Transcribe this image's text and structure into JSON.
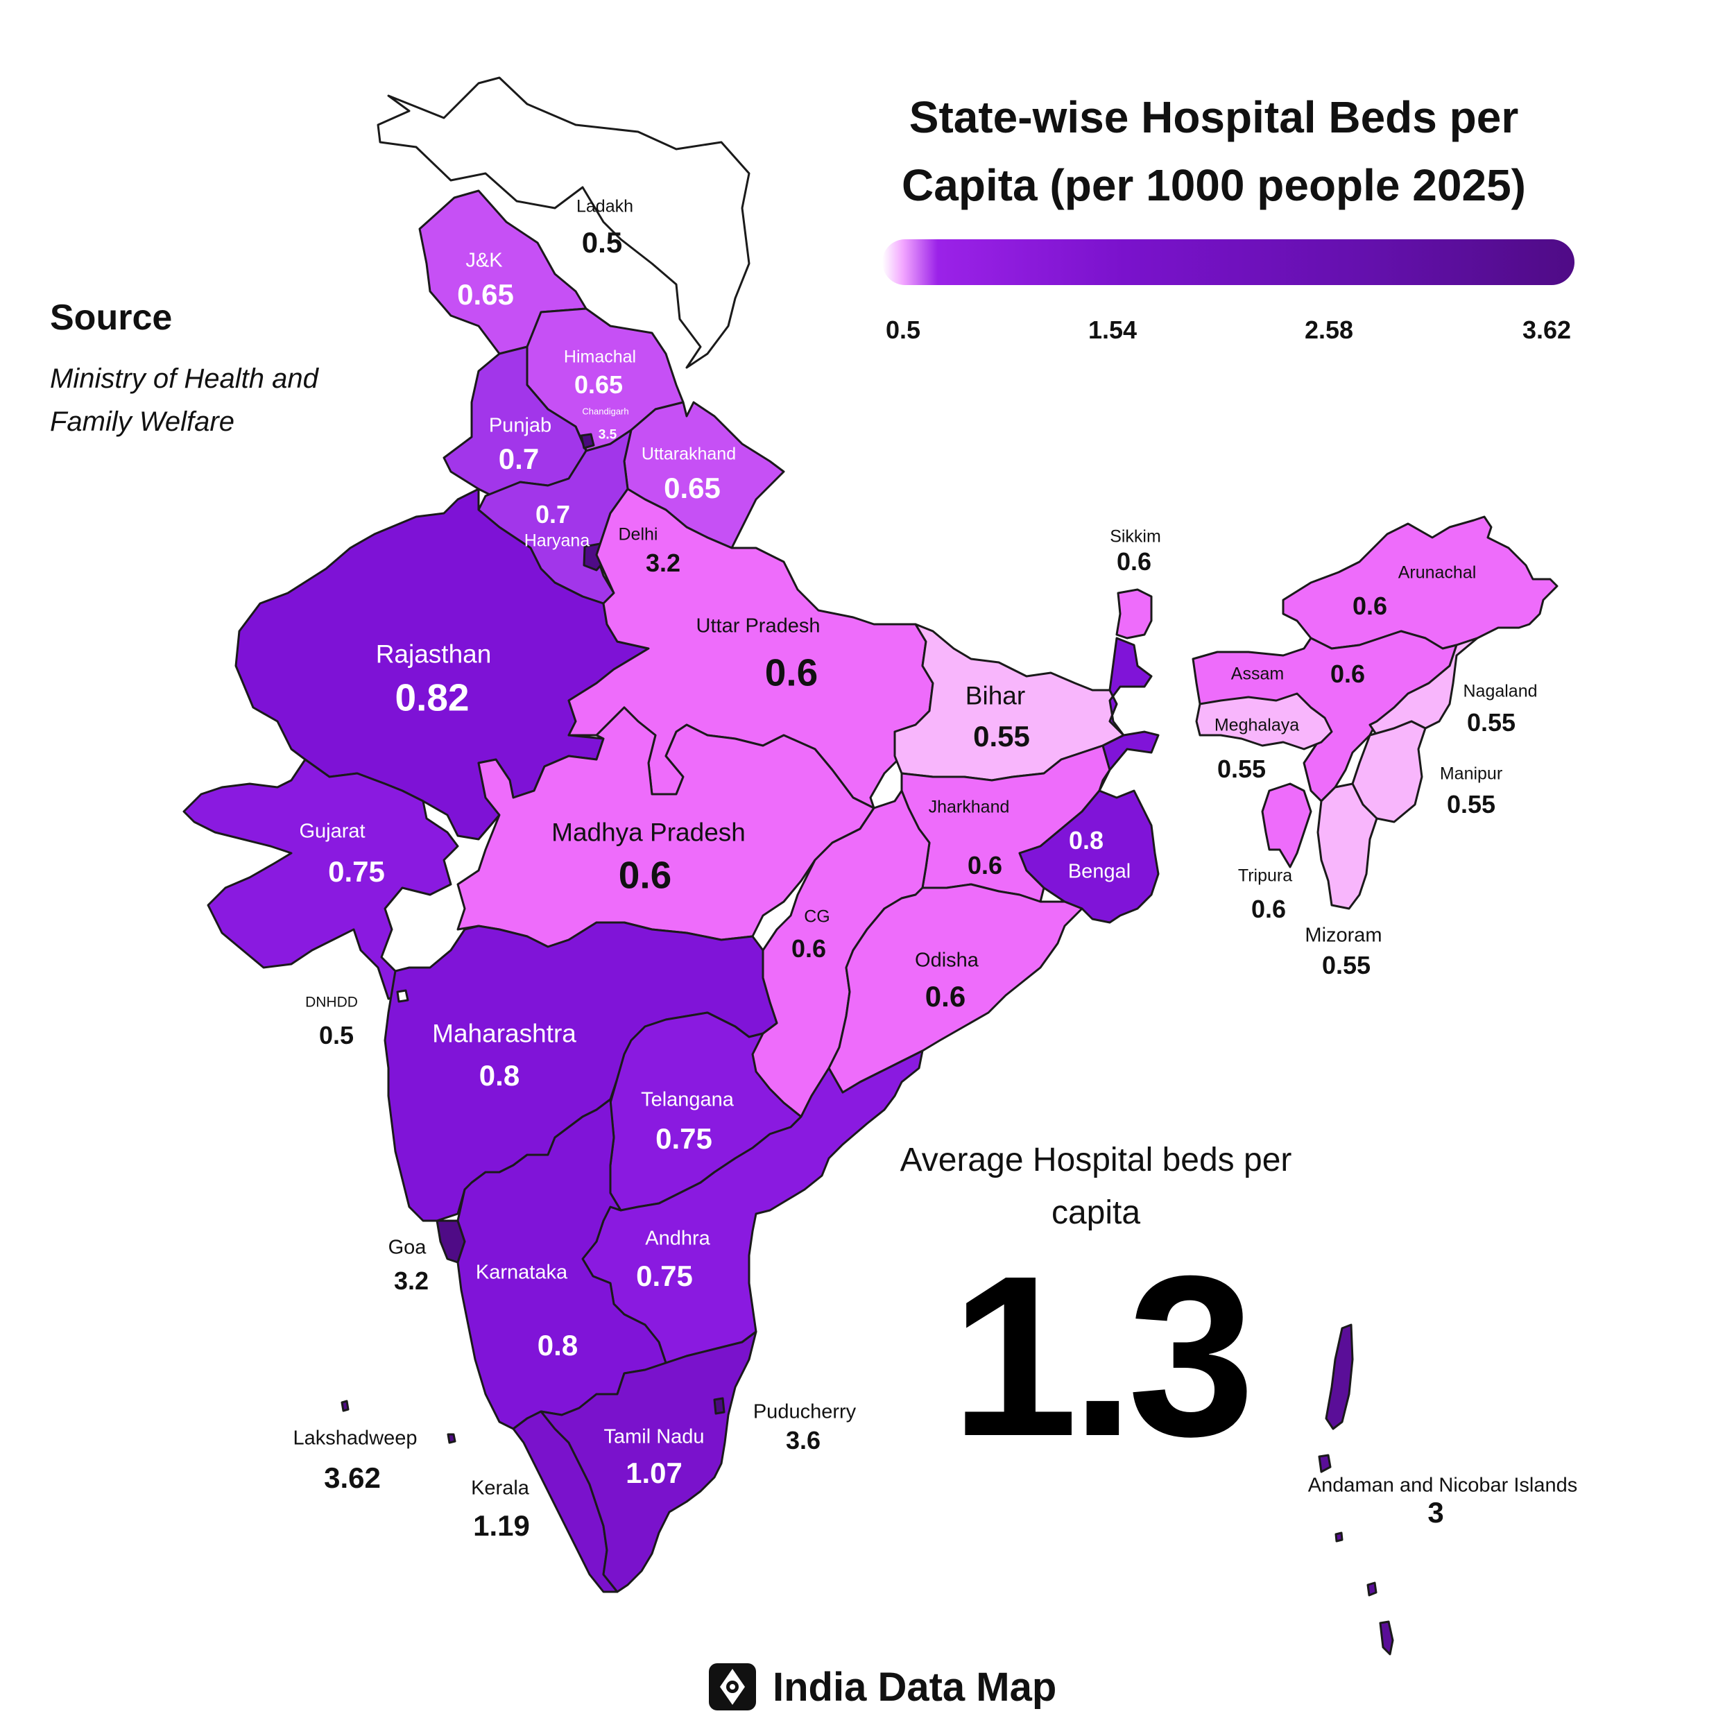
{
  "title": "State-wise Hospital Beds per Capita (per 1000 people 2025)",
  "source": {
    "heading": "Source",
    "text": "Ministry of Health and Family Welfare"
  },
  "legend": {
    "min": "0.5",
    "ticks": [
      "0.5",
      "1.54",
      "2.58",
      "3.62"
    ],
    "colors": [
      "#ffffff",
      "#f2a6ff",
      "#9b22e8",
      "#7a12cc",
      "#4f0b86"
    ]
  },
  "average": {
    "label": "Average Hospital beds per capita",
    "value": "1.3"
  },
  "brand": {
    "name": "India Data Map",
    "icon": "india-data-map-logo-icon"
  },
  "states": {
    "ladakh": {
      "name": "Ladakh",
      "value": "0.5",
      "color": "#ffffff"
    },
    "jk": {
      "name": "J&K",
      "value": "0.65",
      "color": "#c650f5"
    },
    "himachal": {
      "name": "Himachal",
      "value": "0.65",
      "color": "#c650f5"
    },
    "chandigarh": {
      "name": "Chandigarh",
      "value": "3.5",
      "color": "#4a0a7e"
    },
    "punjab": {
      "name": "Punjab",
      "value": "0.7",
      "color": "#a236ea"
    },
    "uttarakhand": {
      "name": "Uttarakhand",
      "value": "0.65",
      "color": "#c650f5"
    },
    "haryana": {
      "name": "Haryana",
      "value": "0.7",
      "color": "#a236ea"
    },
    "delhi": {
      "name": "Delhi",
      "value": "3.2",
      "color": "#4f0b86"
    },
    "rajasthan": {
      "name": "Rajasthan",
      "value": "0.82",
      "color": "#7e12d6"
    },
    "uttar_pradesh": {
      "name": "Uttar Pradesh",
      "value": "0.6",
      "color": "#ee6cfb"
    },
    "bihar": {
      "name": "Bihar",
      "value": "0.55",
      "color": "#f8b6fc"
    },
    "sikkim": {
      "name": "Sikkim",
      "value": "0.6",
      "color": "#ee6cfb"
    },
    "arunachal": {
      "name": "Arunachal",
      "value": "0.6",
      "color": "#ee6cfb"
    },
    "assam": {
      "name": "Assam",
      "value": "0.6",
      "color": "#ee6cfb"
    },
    "nagaland": {
      "name": "Nagaland",
      "value": "0.55",
      "color": "#f8b6fc"
    },
    "meghalaya": {
      "name": "Meghalaya",
      "value": "0.55",
      "color": "#f8b6fc"
    },
    "manipur": {
      "name": "Manipur",
      "value": "0.55",
      "color": "#f8b6fc"
    },
    "tripura": {
      "name": "Tripura",
      "value": "0.6",
      "color": "#ee6cfb"
    },
    "mizoram": {
      "name": "Mizoram",
      "value": "0.55",
      "color": "#f8b6fc"
    },
    "gujarat": {
      "name": "Gujarat",
      "value": "0.75",
      "color": "#8a1ae0"
    },
    "madhya_pradesh": {
      "name": "Madhya Pradesh",
      "value": "0.6",
      "color": "#ee6cfb"
    },
    "jharkhand": {
      "name": "Jharkhand",
      "value": "0.6",
      "color": "#ee6cfb"
    },
    "bengal": {
      "name": "Bengal",
      "value": "0.8",
      "color": "#8014d8"
    },
    "cg": {
      "name": "CG",
      "value": "0.6",
      "color": "#ee6cfb"
    },
    "odisha": {
      "name": "Odisha",
      "value": "0.6",
      "color": "#ee6cfb"
    },
    "dnhdd": {
      "name": "DNHDD",
      "value": "0.5",
      "color": "#ffffff"
    },
    "maharashtra": {
      "name": "Maharashtra",
      "value": "0.8",
      "color": "#8014d8"
    },
    "telangana": {
      "name": "Telangana",
      "value": "0.75",
      "color": "#8a1ae0"
    },
    "goa": {
      "name": "Goa",
      "value": "3.2",
      "color": "#4f0b86"
    },
    "karnataka": {
      "name": "Karnataka",
      "value": "0.8",
      "color": "#8014d8"
    },
    "andhra": {
      "name": "Andhra",
      "value": "0.75",
      "color": "#8a1ae0"
    },
    "lakshadweep": {
      "name": "Lakshadweep",
      "value": "3.62",
      "color": "#4f0b86"
    },
    "kerala": {
      "name": "Kerala",
      "value": "1.19",
      "color": "#7a12cc"
    },
    "tamil_nadu": {
      "name": "Tamil Nadu",
      "value": "1.07",
      "color": "#7a12cc"
    },
    "puducherry": {
      "name": "Puducherry",
      "value": "3.6",
      "color": "#4a0a7e"
    },
    "andaman": {
      "name": "Andaman and Nicobar Islands",
      "value": "3",
      "color": "#5a0e98"
    }
  }
}
